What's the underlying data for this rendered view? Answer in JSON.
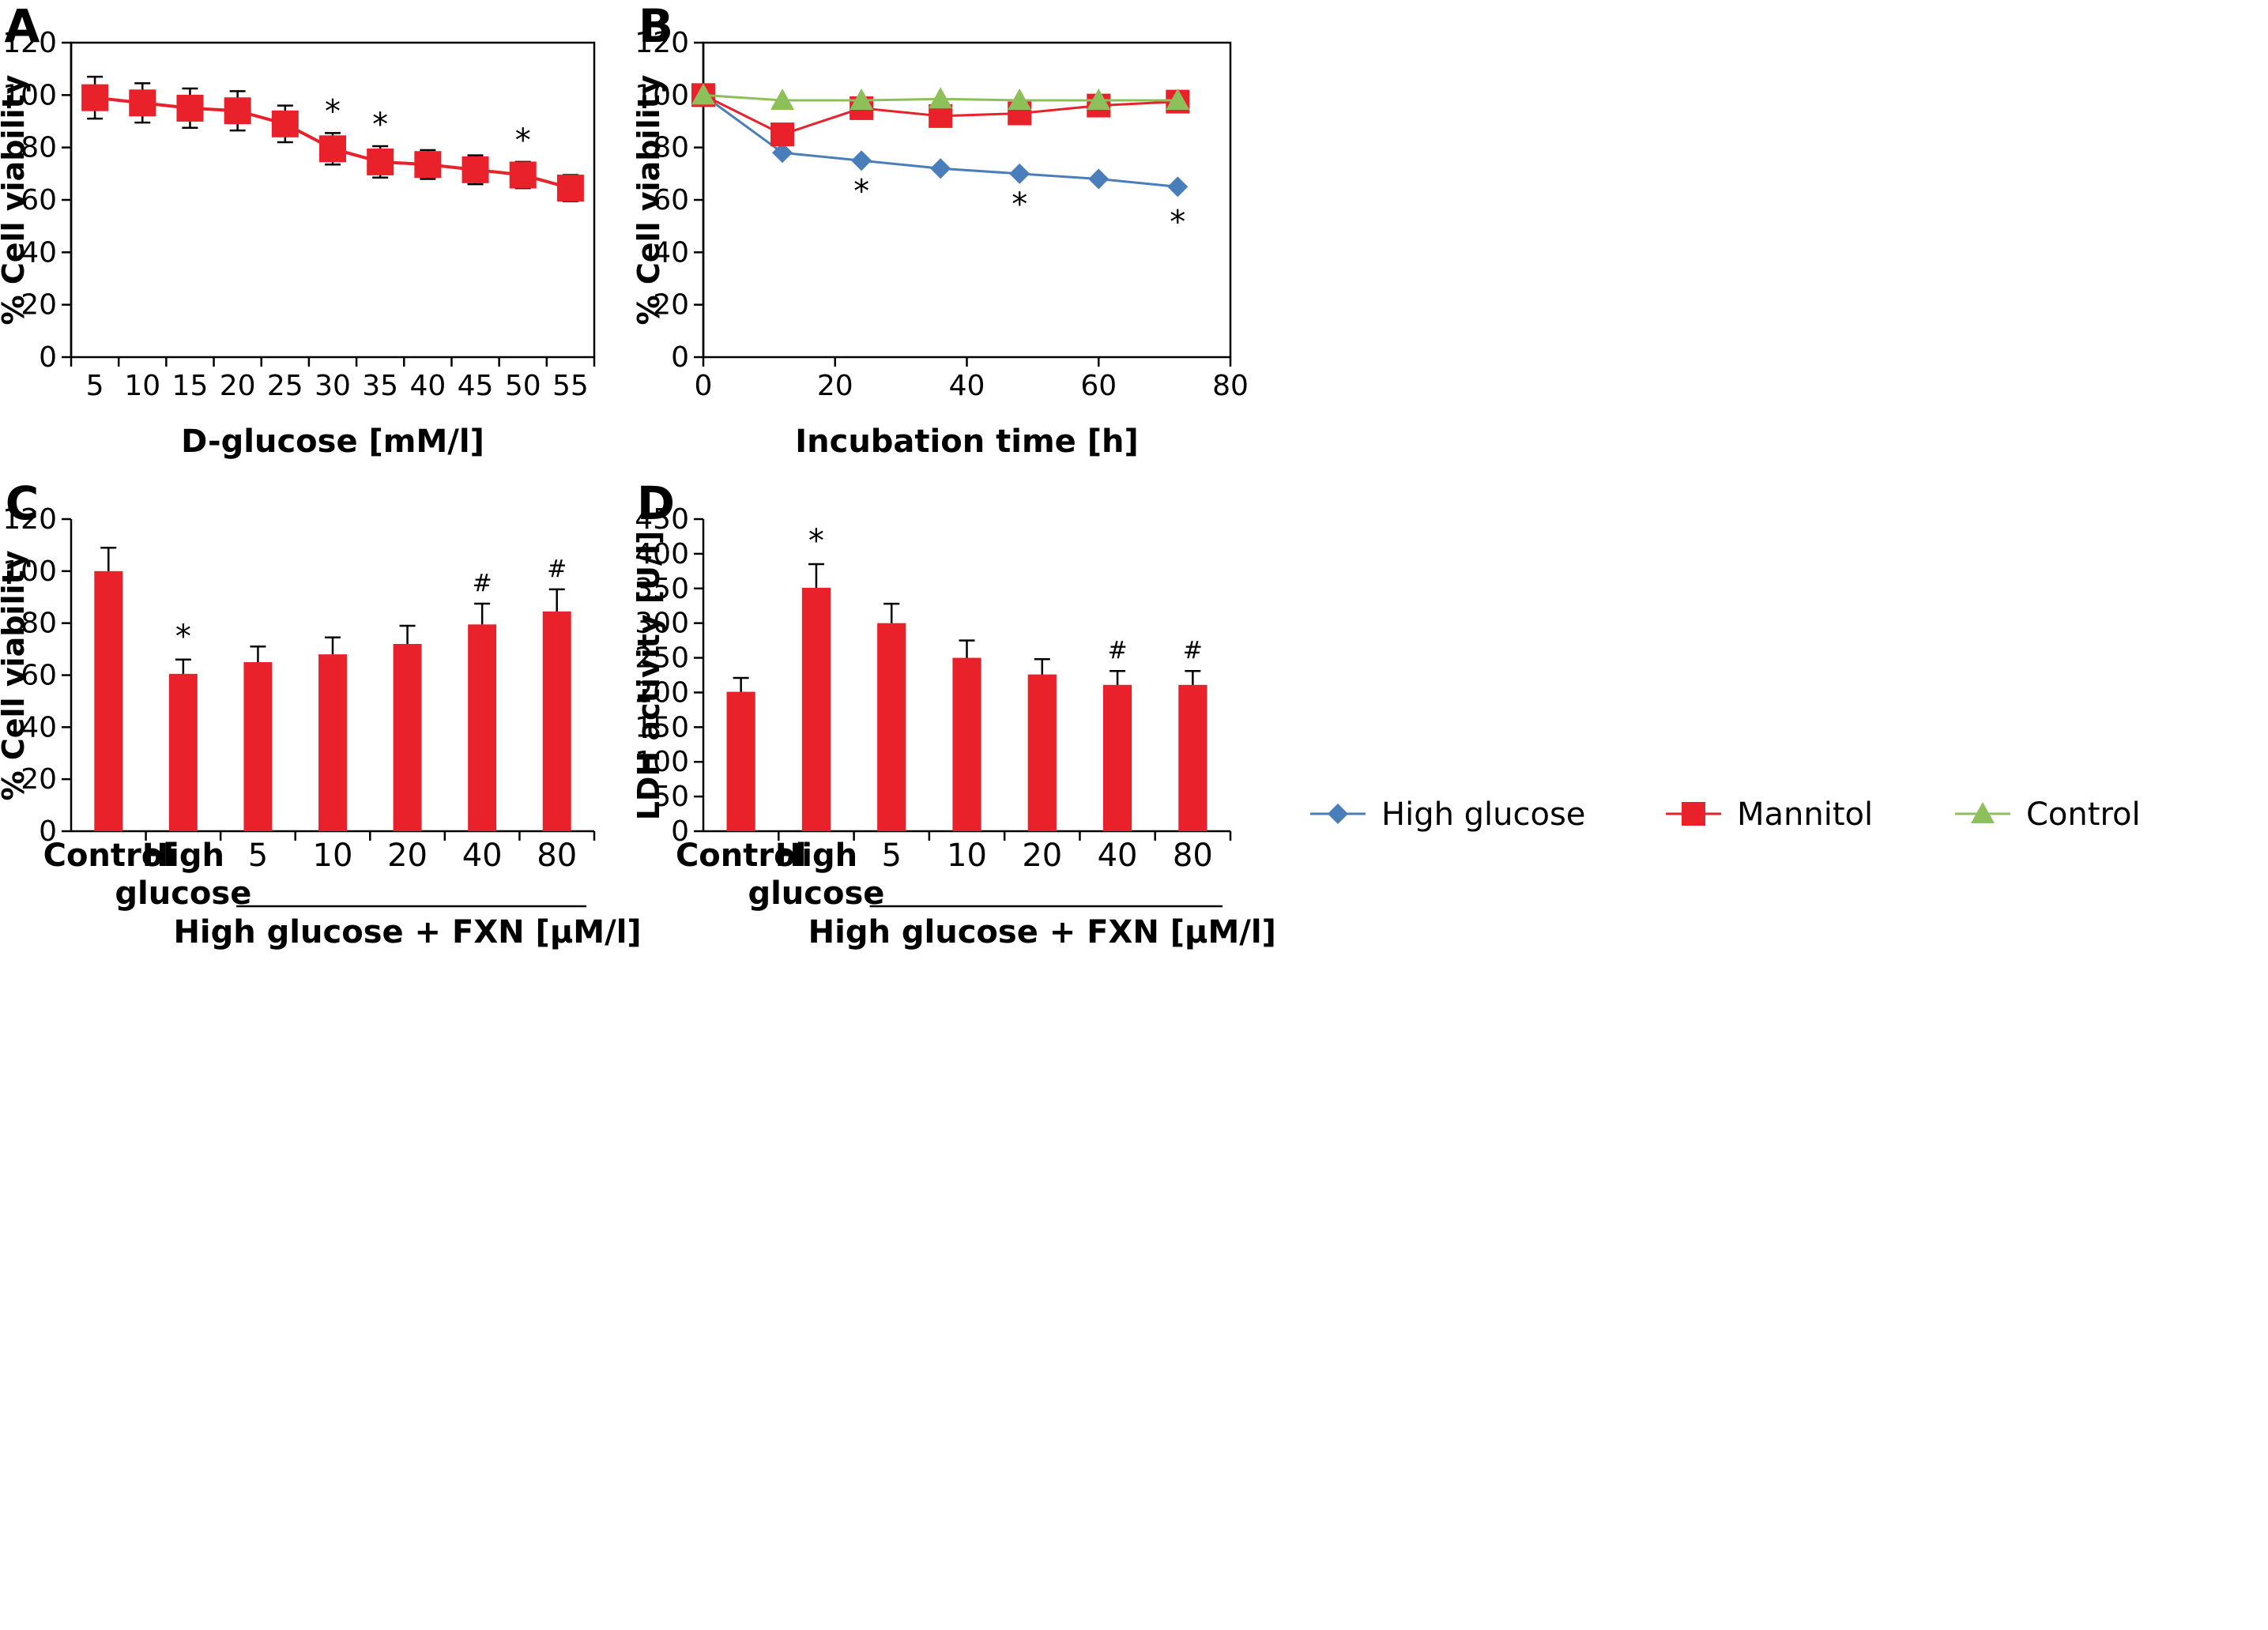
{
  "chart_data": [
    {
      "panel_label": "A",
      "type": "line",
      "x": [
        5,
        10,
        15,
        20,
        25,
        30,
        35,
        40,
        45,
        50,
        55
      ],
      "xticks": [
        "5",
        "10",
        "15",
        "20",
        "25",
        "30",
        "35",
        "40",
        "45",
        "50",
        "55"
      ],
      "xlabel": "D-glucose [mM/l]",
      "ylabel": "% Cell viability",
      "ylim": [
        0,
        120
      ],
      "yticks": [
        "0",
        "20",
        "40",
        "60",
        "80",
        "100",
        "120"
      ],
      "series": [
        {
          "values": [
            99,
            97,
            95,
            94,
            89,
            79.5,
            74.5,
            73.5,
            71.5,
            69.5,
            64.5
          ],
          "errors": [
            8,
            7.5,
            7.5,
            7.5,
            7,
            6,
            6,
            5.5,
            5.5,
            5,
            5
          ],
          "color": "#e8212a",
          "marker": "square"
        }
      ],
      "annotations": [
        {
          "x": 30,
          "text": "*"
        },
        {
          "x": 35,
          "text": "*"
        },
        {
          "x": 50,
          "text": "*"
        }
      ]
    },
    {
      "panel_label": "B",
      "type": "line",
      "xlabel": "Incubation time [h]",
      "ylabel": "% Cell viability",
      "xlim": [
        0,
        80
      ],
      "xticks": [
        "0",
        "20",
        "40",
        "60",
        "80"
      ],
      "ylim": [
        0,
        120
      ],
      "yticks": [
        "0",
        "20",
        "40",
        "60",
        "80",
        "100",
        "120"
      ],
      "legend_position": "bottom",
      "series": [
        {
          "name": "High glucose",
          "x": [
            0,
            12,
            24,
            36,
            48,
            60,
            72
          ],
          "values": [
            100,
            78,
            75,
            72,
            70,
            68,
            65
          ],
          "color": "#4a7ebb",
          "marker": "diamond"
        },
        {
          "name": "Mannitol",
          "x": [
            0,
            12,
            24,
            36,
            48,
            60,
            72
          ],
          "values": [
            100,
            85,
            95,
            92,
            93,
            96,
            97.5
          ],
          "color": "#e8212a",
          "marker": "square"
        },
        {
          "name": "Control",
          "x": [
            0,
            12,
            24,
            36,
            48,
            60,
            72
          ],
          "values": [
            100,
            98,
            98,
            98.5,
            98,
            98,
            98
          ],
          "color": "#8dbf5a",
          "marker": "triangle"
        }
      ],
      "annotations": [
        {
          "x": 24,
          "text": "*"
        },
        {
          "x": 48,
          "text": "*"
        },
        {
          "x": 72,
          "text": "*"
        }
      ]
    },
    {
      "panel_label": "C",
      "type": "bar",
      "categories": [
        "Control",
        "High glucose",
        "5",
        "10",
        "20",
        "40",
        "80"
      ],
      "category_lines": [
        [
          "Control"
        ],
        [
          "High",
          "glucose"
        ],
        [
          "5"
        ],
        [
          "10"
        ],
        [
          "20"
        ],
        [
          "40"
        ],
        [
          "80"
        ]
      ],
      "group_label": "High glucose + FXN [μM/l]",
      "ylabel": "% Cell viability",
      "ylim": [
        0,
        120
      ],
      "yticks": [
        "0",
        "20",
        "40",
        "60",
        "80",
        "100",
        "120"
      ],
      "values": [
        100,
        60.5,
        65,
        68,
        72,
        79.5,
        84.5
      ],
      "errors": [
        9,
        5.5,
        6,
        6.5,
        7,
        8,
        8.5
      ],
      "marks": [
        "",
        "*",
        "",
        "",
        "",
        "#",
        "#"
      ],
      "color": "#e8212a"
    },
    {
      "panel_label": "D",
      "type": "bar",
      "categories": [
        "Control",
        "High glucose",
        "5",
        "10",
        "20",
        "40",
        "80"
      ],
      "category_lines": [
        [
          "Control"
        ],
        [
          "High",
          "glucose"
        ],
        [
          "5"
        ],
        [
          "10"
        ],
        [
          "20"
        ],
        [
          "40"
        ],
        [
          "80"
        ]
      ],
      "group_label": "High glucose + FXN [μM/l]",
      "ylabel": "LDH activity [U/l]",
      "ylim": [
        0,
        450
      ],
      "yticks": [
        "0",
        "50",
        "100",
        "150",
        "200",
        "250",
        "300",
        "350",
        "400",
        "450"
      ],
      "values": [
        201,
        351,
        300,
        250,
        226,
        211,
        211
      ],
      "errors": [
        20,
        34,
        28,
        25,
        22,
        20,
        20
      ],
      "marks": [
        "",
        "*",
        "",
        "",
        "",
        "#",
        "#"
      ],
      "color": "#e8212a"
    }
  ]
}
